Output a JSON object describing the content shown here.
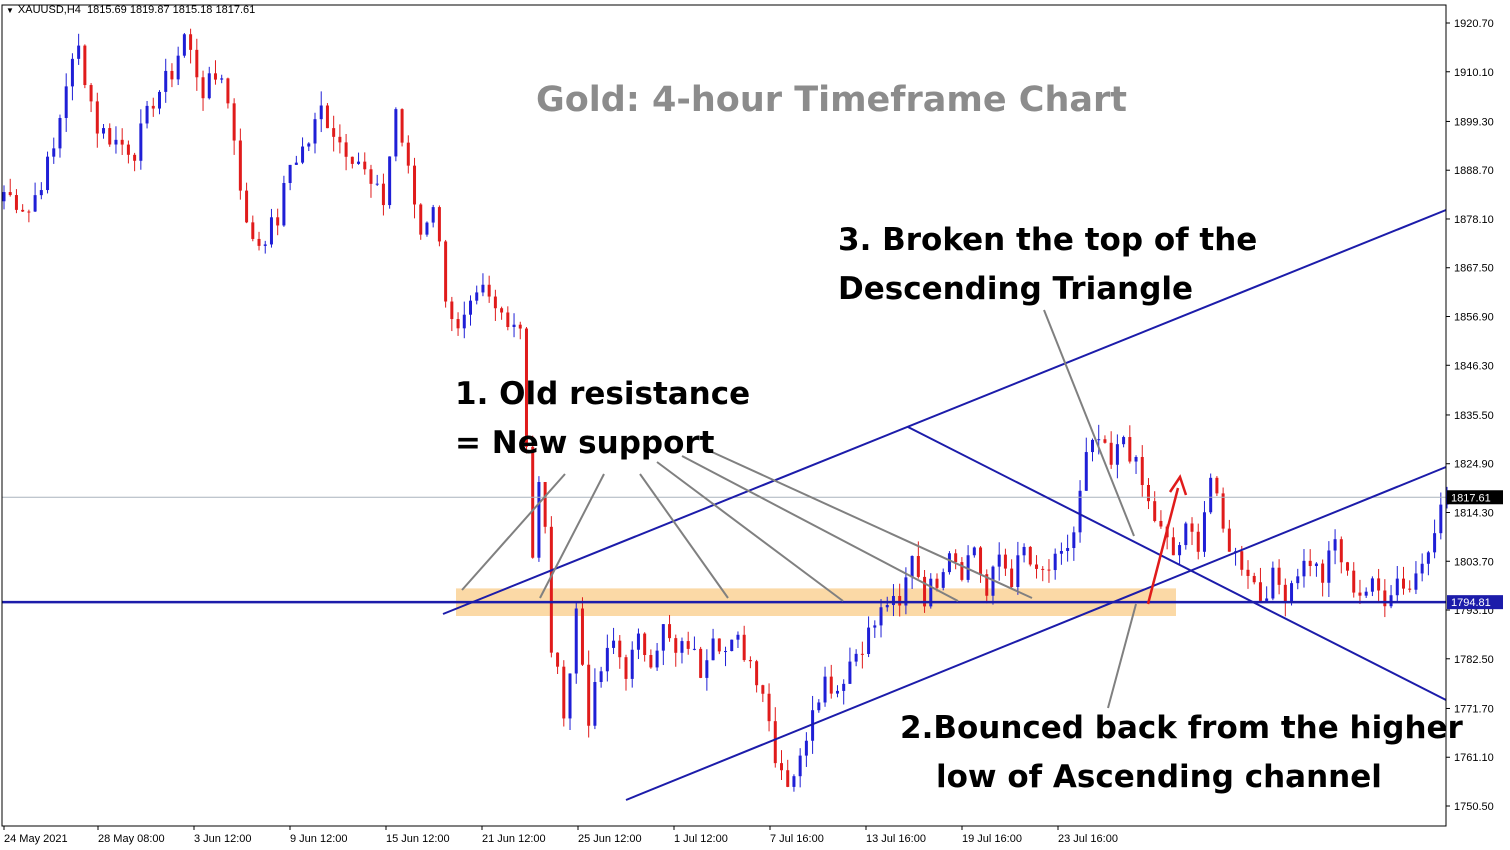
{
  "header": {
    "symbol_text": "XAUUSD,H4",
    "ohlc_text": "1815.69 1819.87 1815.18 1817.61"
  },
  "chart_data": {
    "type": "candlestick",
    "title": "Gold: 4-hour Timeframe Chart",
    "symbol": "XAUUSD",
    "timeframe": "H4",
    "ylim": [
      1746,
      1926
    ],
    "y_ticks": [
      1920.7,
      1910.1,
      1899.3,
      1888.7,
      1878.1,
      1867.5,
      1856.9,
      1846.3,
      1835.5,
      1824.9,
      1814.3,
      1803.7,
      1793.1,
      1782.5,
      1771.7,
      1761.1,
      1750.5
    ],
    "x_ticks": [
      "24 May 2021",
      "28 May 08:00",
      "3 Jun 12:00",
      "9 Jun 12:00",
      "15 Jun 12:00",
      "21 Jun 12:00",
      "25 Jun 12:00",
      "1 Jul 12:00",
      "7 Jul 16:00",
      "13 Jul 16:00",
      "19 Jul 16:00",
      "23 Jul 16:00"
    ],
    "current_price": 1817.61,
    "support_level": 1794.81,
    "colors": {
      "bull": "#1f1fd6",
      "bear": "#e01b1b",
      "trendline": "#1c1caa",
      "zone": "#fbd9a6",
      "price_line": "#aab4be",
      "arrow": "#e01b1b",
      "pointer": "#808080"
    },
    "annotations": {
      "a1_line1": "1. Old resistance",
      "a1_line2": "= New support",
      "a2_line1": "2.Bounced back from the higher",
      "a2_line2": "low of Ascending channel",
      "a3_line1": "3. Broken the top of the",
      "a3_line2": "Descending Triangle"
    },
    "waypoints": [
      [
        0,
        1884
      ],
      [
        4,
        1880
      ],
      [
        8,
        1893
      ],
      [
        10,
        1908
      ],
      [
        12,
        1915
      ],
      [
        15,
        1898
      ],
      [
        18,
        1895
      ],
      [
        21,
        1893
      ],
      [
        24,
        1904
      ],
      [
        27,
        1910
      ],
      [
        29,
        1918
      ],
      [
        32,
        1906
      ],
      [
        35,
        1910
      ],
      [
        37,
        1896
      ],
      [
        39,
        1876
      ],
      [
        41,
        1873
      ],
      [
        44,
        1878
      ],
      [
        46,
        1890
      ],
      [
        49,
        1895
      ],
      [
        51,
        1902
      ],
      [
        54,
        1895
      ],
      [
        57,
        1891
      ],
      [
        59,
        1885
      ],
      [
        61,
        1882
      ],
      [
        63,
        1902
      ],
      [
        65,
        1888
      ],
      [
        67,
        1875
      ],
      [
        69,
        1882
      ],
      [
        71,
        1862
      ],
      [
        73,
        1853
      ],
      [
        75,
        1858
      ],
      [
        77,
        1862
      ],
      [
        79,
        1858
      ],
      [
        81,
        1857
      ],
      [
        83,
        1855
      ],
      [
        85,
        1805
      ],
      [
        86,
        1820
      ],
      [
        87,
        1810
      ],
      [
        88,
        1785
      ],
      [
        90,
        1772
      ],
      [
        91,
        1780
      ],
      [
        92,
        1793
      ],
      [
        94,
        1770
      ],
      [
        96,
        1780
      ],
      [
        98,
        1786
      ],
      [
        100,
        1780
      ],
      [
        102,
        1786
      ],
      [
        104,
        1783
      ],
      [
        106,
        1789
      ],
      [
        108,
        1783
      ],
      [
        110,
        1786
      ],
      [
        112,
        1780
      ],
      [
        114,
        1789
      ],
      [
        116,
        1784
      ],
      [
        118,
        1786
      ],
      [
        120,
        1782
      ],
      [
        122,
        1776
      ],
      [
        124,
        1762
      ],
      [
        126,
        1756
      ],
      [
        128,
        1760
      ],
      [
        130,
        1773
      ],
      [
        132,
        1778
      ],
      [
        134,
        1776
      ],
      [
        136,
        1782
      ],
      [
        138,
        1786
      ],
      [
        140,
        1790
      ],
      [
        142,
        1795
      ],
      [
        144,
        1793
      ],
      [
        146,
        1806
      ],
      [
        148,
        1796
      ],
      [
        150,
        1800
      ],
      [
        152,
        1807
      ],
      [
        154,
        1802
      ],
      [
        156,
        1807
      ],
      [
        158,
        1796
      ],
      [
        160,
        1805
      ],
      [
        162,
        1800
      ],
      [
        164,
        1806
      ],
      [
        166,
        1800
      ],
      [
        168,
        1802
      ],
      [
        170,
        1804
      ],
      [
        172,
        1810
      ],
      [
        174,
        1826
      ],
      [
        176,
        1830
      ],
      [
        178,
        1824
      ],
      [
        180,
        1831
      ],
      [
        182,
        1824
      ],
      [
        184,
        1816
      ],
      [
        186,
        1810
      ],
      [
        188,
        1805
      ],
      [
        190,
        1810
      ],
      [
        192,
        1808
      ],
      [
        194,
        1822
      ],
      [
        196,
        1810
      ],
      [
        198,
        1805
      ],
      [
        200,
        1802
      ],
      [
        202,
        1796
      ],
      [
        204,
        1800
      ],
      [
        206,
        1797
      ],
      [
        208,
        1802
      ],
      [
        210,
        1804
      ],
      [
        212,
        1800
      ],
      [
        214,
        1808
      ],
      [
        216,
        1800
      ],
      [
        218,
        1797
      ],
      [
        220,
        1798
      ],
      [
        222,
        1796
      ],
      [
        224,
        1800
      ],
      [
        226,
        1798
      ],
      [
        228,
        1804
      ],
      [
        230,
        1812
      ],
      [
        232,
        1817.61
      ]
    ]
  }
}
